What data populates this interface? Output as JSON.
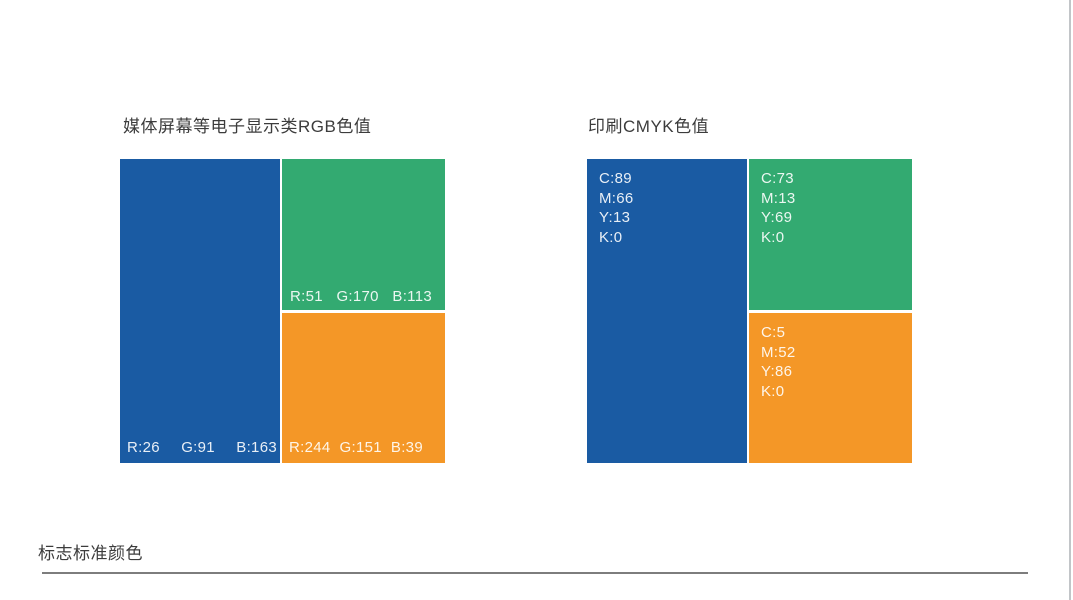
{
  "page": {
    "footer_label": "标志标准颜色",
    "background": "#ffffff"
  },
  "colors": {
    "brand_blue": "#1A5BA3",
    "brand_green": "#33AA71",
    "brand_orange": "#F49727",
    "heading_text": "#3C3C3C",
    "swatch_text": "rgba(255,255,255,0.9)",
    "divider": "#7D7D7D",
    "page_edge": "#C2C5C8"
  },
  "rgb_section": {
    "title": "媒体屏幕等电子显示类RGB色值",
    "swatches": {
      "blue": {
        "values": [
          "R:26",
          "G:91",
          "B:163"
        ]
      },
      "green": {
        "values": [
          "R:51",
          "G:170",
          "B:113"
        ]
      },
      "orange": {
        "values": [
          "R:244",
          "G:151",
          "B:39"
        ]
      }
    }
  },
  "cmyk_section": {
    "title": "印刷CMYK色值",
    "swatches": {
      "blue": {
        "values": [
          "C:89",
          "M:66",
          "Y:13",
          "K:0"
        ]
      },
      "green": {
        "values": [
          "C:73",
          "M:13",
          "Y:69",
          "K:0"
        ]
      },
      "orange": {
        "values": [
          "C:5",
          "M:52",
          "Y:86",
          "K:0"
        ]
      }
    }
  }
}
